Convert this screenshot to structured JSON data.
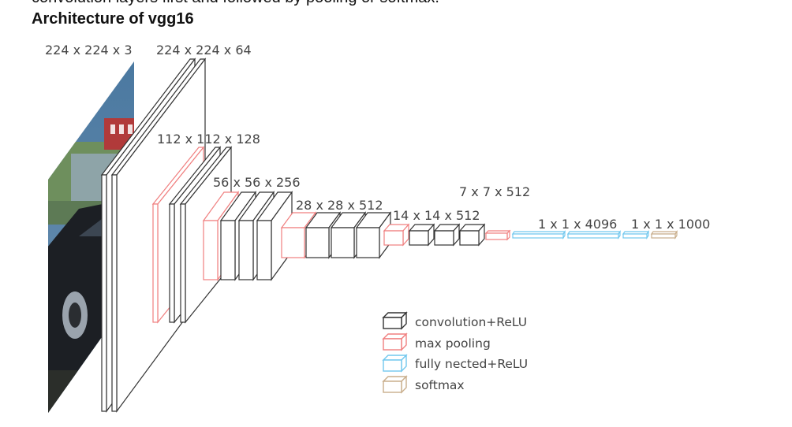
{
  "document": {
    "cut_off_line": "convolution layers first and followed by pooling or softmax.",
    "heading": "Architecture of vgg16"
  },
  "diagram": {
    "dimension_labels": {
      "input": "224 x 224 x 3",
      "block1": "224 x 224 x 64",
      "block2": "112 x 112 x 128",
      "block3": "56 x 56 x 256",
      "block4": "28 x 28 x 512",
      "block5": "14 x 14 x 512",
      "pool5": "7 x 7 x 512",
      "fc": "1 x 1 x 4096",
      "output": "1 x 1 x 1000"
    },
    "legend": [
      {
        "label": "convolution+ReLU",
        "color": "#333333"
      },
      {
        "label": "max pooling",
        "color": "#f07f7f"
      },
      {
        "label": "fully nected+ReLU",
        "color": "#72c8ee"
      },
      {
        "label": "softmax",
        "color": "#c9ae8c"
      }
    ],
    "input_image": "photo-of-black-car-icon"
  }
}
